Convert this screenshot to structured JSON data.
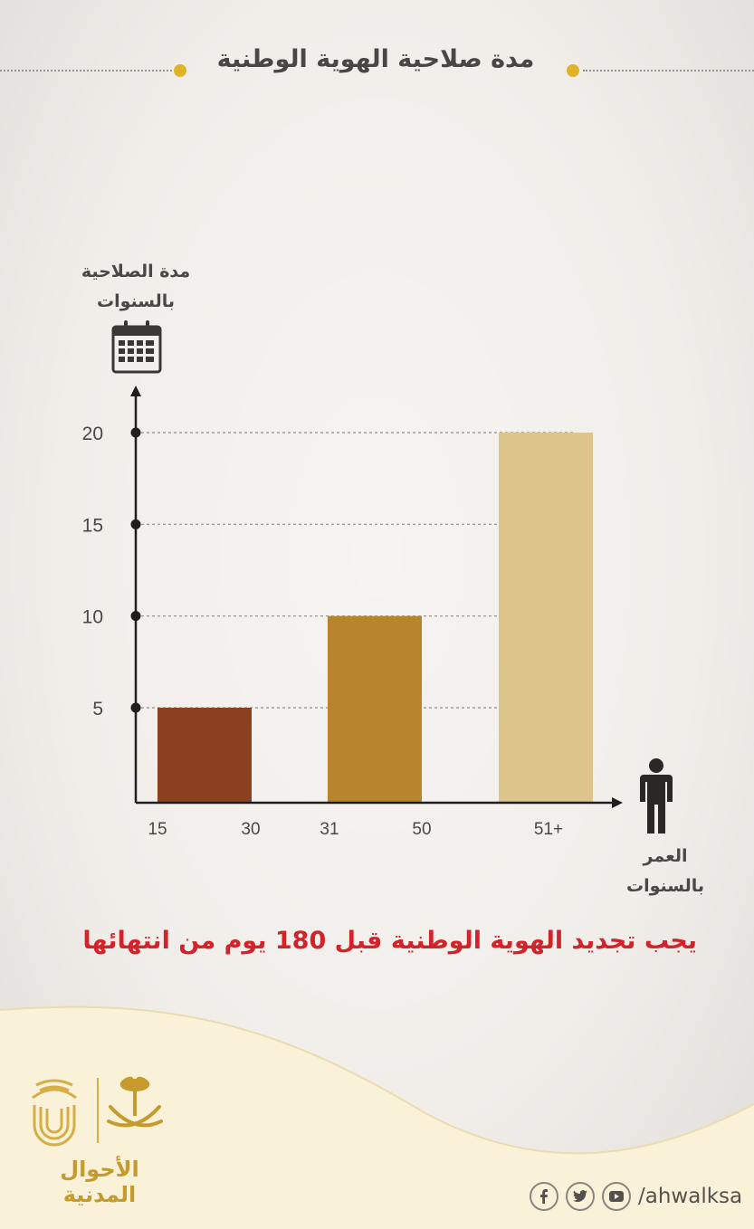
{
  "header": {
    "title": "مدة صلاحية الهوية الوطنية"
  },
  "colors": {
    "accent": "#e0b227",
    "axis": "#1e1e1e",
    "text": "#4b4745",
    "note": "#d2222a",
    "bar1": "#8b401f",
    "bar2": "#b8842c",
    "bar3": "#dcc48a"
  },
  "y_title": {
    "line1": "مدة الصلاحية",
    "line2": "بالسنوات"
  },
  "x_title": {
    "line1": "العمر",
    "line2": "بالسنوات"
  },
  "chart_data": {
    "type": "bar",
    "categories": [
      "15 - 30",
      "31 - 50",
      "51+"
    ],
    "x_tick_labels": [
      "15",
      "30",
      "31",
      "50",
      "51+"
    ],
    "values": [
      5,
      10,
      20
    ],
    "y_ticks": [
      "5",
      "10",
      "15",
      "20"
    ],
    "ylim": [
      0,
      22
    ],
    "grid": true
  },
  "note": "يجب تجديد الهوية الوطنية قبل 180 يوم من انتهائها",
  "footer": {
    "org_name": "الأحوال المدنية",
    "handle": "/ahwalksa"
  },
  "icons": [
    "calendar-icon",
    "person-icon",
    "facebook-icon",
    "twitter-icon",
    "youtube-icon"
  ]
}
